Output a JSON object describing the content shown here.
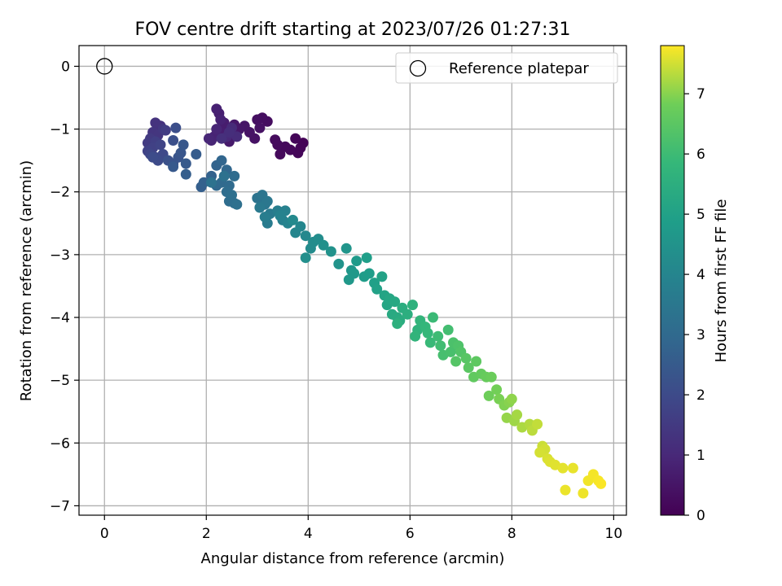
{
  "chart_data": {
    "type": "scatter",
    "title": "FOV centre drift starting at 2023/07/26 01:27:31",
    "xlabel": "Angular distance from reference (arcmin)",
    "ylabel": "Rotation from reference (arcmin)",
    "xlim": [
      -0.5,
      10.25
    ],
    "ylim": [
      -7.15,
      0.33
    ],
    "xticks": [
      0,
      2,
      4,
      6,
      8,
      10
    ],
    "xtick_labels": [
      "0",
      "2",
      "4",
      "6",
      "8",
      "10"
    ],
    "yticks": [
      0,
      -1,
      -2,
      -3,
      -4,
      -5,
      -6,
      -7
    ],
    "ytick_labels": [
      "0",
      "−1",
      "−2",
      "−3",
      "−4",
      "−5",
      "−6",
      "−7"
    ],
    "grid": true,
    "legend": {
      "placement": "top-right",
      "entries": [
        "Reference platepar"
      ]
    },
    "colorbar": {
      "label": "Hours from first FF file",
      "range": [
        0,
        7.8
      ],
      "ticks": [
        0,
        1,
        2,
        3,
        4,
        5,
        6,
        7
      ],
      "tick_labels": [
        "0",
        "1",
        "2",
        "3",
        "4",
        "5",
        "6",
        "7"
      ],
      "colormap": "viridis"
    },
    "reference_point": {
      "x": 0,
      "y": 0
    },
    "points": [
      [
        3.9,
        -1.22,
        0.05
      ],
      [
        3.85,
        -1.3,
        0.08
      ],
      [
        3.75,
        -1.15,
        0.1
      ],
      [
        3.8,
        -1.38,
        0.12
      ],
      [
        3.65,
        -1.33,
        0.15
      ],
      [
        3.55,
        -1.28,
        0.18
      ],
      [
        3.45,
        -1.4,
        0.2
      ],
      [
        3.4,
        -1.25,
        0.22
      ],
      [
        3.35,
        -1.17,
        0.25
      ],
      [
        3.2,
        -0.88,
        0.3
      ],
      [
        3.1,
        -0.82,
        0.33
      ],
      [
        3.0,
        -0.85,
        0.36
      ],
      [
        3.05,
        -0.98,
        0.4
      ],
      [
        2.95,
        -1.15,
        0.43
      ],
      [
        2.85,
        -1.05,
        0.46
      ],
      [
        2.75,
        -0.95,
        0.5
      ],
      [
        2.65,
        -1.0,
        0.53
      ],
      [
        2.55,
        -0.93,
        0.56
      ],
      [
        2.5,
        -1.08,
        0.6
      ],
      [
        2.45,
        -1.2,
        0.63
      ],
      [
        2.4,
        -0.98,
        0.66
      ],
      [
        2.35,
        -0.9,
        0.7
      ],
      [
        2.3,
        -1.05,
        0.73
      ],
      [
        2.25,
        -0.75,
        0.76
      ],
      [
        2.2,
        -0.68,
        0.8
      ],
      [
        2.28,
        -0.85,
        0.83
      ],
      [
        2.15,
        -1.12,
        0.86
      ],
      [
        2.1,
        -1.18,
        0.9
      ],
      [
        2.2,
        -1.0,
        0.93
      ],
      [
        2.05,
        -1.15,
        0.96
      ],
      [
        2.4,
        -1.12,
        1.0
      ],
      [
        2.5,
        -0.98,
        1.05
      ],
      [
        2.6,
        -1.12,
        1.1
      ],
      [
        2.45,
        -1.05,
        1.15
      ],
      [
        2.3,
        -1.15,
        1.2
      ],
      [
        1.1,
        -0.95,
        1.25
      ],
      [
        1.0,
        -0.9,
        1.3
      ],
      [
        0.95,
        -1.05,
        1.35
      ],
      [
        1.05,
        -1.1,
        1.4
      ],
      [
        1.15,
        -1.0,
        1.45
      ],
      [
        0.9,
        -1.15,
        1.5
      ],
      [
        0.85,
        -1.22,
        1.55
      ],
      [
        1.2,
        -1.02,
        1.6
      ],
      [
        1.0,
        -1.2,
        1.65
      ],
      [
        0.95,
        -1.3,
        1.7
      ],
      [
        0.85,
        -1.35,
        1.75
      ],
      [
        1.1,
        -1.25,
        1.8
      ],
      [
        0.9,
        -1.4,
        1.85
      ],
      [
        1.0,
        -1.45,
        1.9
      ],
      [
        1.15,
        -1.4,
        1.95
      ],
      [
        1.05,
        -1.5,
        2.0
      ],
      [
        0.95,
        -1.45,
        2.05
      ],
      [
        1.4,
        -0.98,
        2.1
      ],
      [
        1.35,
        -1.18,
        2.15
      ],
      [
        1.25,
        -1.5,
        2.2
      ],
      [
        1.35,
        -1.55,
        2.25
      ],
      [
        1.45,
        -1.45,
        2.3
      ],
      [
        1.5,
        -1.38,
        2.35
      ],
      [
        1.55,
        -1.25,
        2.4
      ],
      [
        1.35,
        -1.6,
        2.45
      ],
      [
        1.6,
        -1.55,
        2.5
      ],
      [
        1.8,
        -1.4,
        2.55
      ],
      [
        1.6,
        -1.72,
        2.6
      ],
      [
        1.9,
        -1.92,
        2.65
      ],
      [
        1.95,
        -1.85,
        2.7
      ],
      [
        2.1,
        -1.75,
        2.75
      ],
      [
        2.2,
        -1.58,
        2.8
      ],
      [
        2.3,
        -1.5,
        2.85
      ],
      [
        2.4,
        -1.65,
        2.9
      ],
      [
        2.2,
        -1.9,
        2.95
      ],
      [
        2.3,
        -1.85,
        3.0
      ],
      [
        2.45,
        -1.9,
        3.03
      ],
      [
        2.55,
        -1.75,
        3.06
      ],
      [
        2.4,
        -2.0,
        3.1
      ],
      [
        2.45,
        -2.15,
        3.13
      ],
      [
        2.55,
        -2.18,
        3.16
      ],
      [
        2.5,
        -2.05,
        3.2
      ],
      [
        2.6,
        -2.2,
        3.23
      ],
      [
        2.35,
        -1.75,
        3.26
      ],
      [
        2.1,
        -1.85,
        3.3
      ],
      [
        3.0,
        -2.1,
        3.35
      ],
      [
        3.1,
        -2.05,
        3.4
      ],
      [
        3.15,
        -2.2,
        3.45
      ],
      [
        3.2,
        -2.15,
        3.5
      ],
      [
        3.05,
        -2.25,
        3.55
      ],
      [
        3.25,
        -2.35,
        3.6
      ],
      [
        3.2,
        -2.5,
        3.65
      ],
      [
        3.15,
        -2.4,
        3.7
      ],
      [
        3.4,
        -2.3,
        3.75
      ],
      [
        3.5,
        -2.45,
        3.8
      ],
      [
        3.55,
        -2.3,
        3.85
      ],
      [
        3.45,
        -2.38,
        3.9
      ],
      [
        3.6,
        -2.5,
        3.95
      ],
      [
        3.75,
        -2.65,
        4.0
      ],
      [
        3.85,
        -2.55,
        4.05
      ],
      [
        3.95,
        -2.7,
        4.1
      ],
      [
        3.7,
        -2.45,
        4.15
      ],
      [
        4.05,
        -2.9,
        4.2
      ],
      [
        4.1,
        -2.8,
        4.25
      ],
      [
        4.2,
        -2.75,
        4.3
      ],
      [
        3.95,
        -3.05,
        4.35
      ],
      [
        4.3,
        -2.85,
        4.4
      ],
      [
        4.45,
        -2.95,
        4.45
      ],
      [
        4.6,
        -3.15,
        4.5
      ],
      [
        4.75,
        -2.9,
        4.55
      ],
      [
        4.85,
        -3.25,
        4.6
      ],
      [
        4.8,
        -3.4,
        4.65
      ],
      [
        4.9,
        -3.3,
        4.7
      ],
      [
        4.95,
        -3.1,
        4.75
      ],
      [
        5.1,
        -3.35,
        4.8
      ],
      [
        5.2,
        -3.3,
        4.85
      ],
      [
        5.15,
        -3.05,
        4.9
      ],
      [
        5.3,
        -3.45,
        4.95
      ],
      [
        5.35,
        -3.55,
        5.0
      ],
      [
        5.45,
        -3.35,
        5.05
      ],
      [
        5.5,
        -3.65,
        5.1
      ],
      [
        5.55,
        -3.8,
        5.15
      ],
      [
        5.6,
        -3.7,
        5.2
      ],
      [
        5.7,
        -3.75,
        5.25
      ],
      [
        5.65,
        -3.95,
        5.3
      ],
      [
        5.75,
        -4.0,
        5.35
      ],
      [
        5.8,
        -4.05,
        5.4
      ],
      [
        5.85,
        -3.85,
        5.45
      ],
      [
        5.95,
        -3.95,
        5.5
      ],
      [
        5.75,
        -4.1,
        5.55
      ],
      [
        6.05,
        -3.8,
        5.6
      ],
      [
        6.15,
        -4.2,
        5.65
      ],
      [
        6.1,
        -4.3,
        5.7
      ],
      [
        6.2,
        -4.05,
        5.75
      ],
      [
        6.3,
        -4.15,
        5.8
      ],
      [
        6.35,
        -4.25,
        5.85
      ],
      [
        6.4,
        -4.4,
        5.9
      ],
      [
        6.45,
        -4.0,
        5.95
      ],
      [
        6.55,
        -4.3,
        6.0
      ],
      [
        6.6,
        -4.45,
        6.05
      ],
      [
        6.75,
        -4.2,
        6.1
      ],
      [
        6.65,
        -4.6,
        6.15
      ],
      [
        6.8,
        -4.55,
        6.2
      ],
      [
        6.85,
        -4.4,
        6.25
      ],
      [
        6.95,
        -4.45,
        6.3
      ],
      [
        7.0,
        -4.55,
        6.35
      ],
      [
        6.9,
        -4.7,
        6.4
      ],
      [
        7.1,
        -4.65,
        6.45
      ],
      [
        7.15,
        -4.8,
        6.5
      ],
      [
        7.3,
        -4.7,
        6.55
      ],
      [
        7.25,
        -4.95,
        6.6
      ],
      [
        7.4,
        -4.9,
        6.65
      ],
      [
        7.5,
        -4.95,
        6.7
      ],
      [
        7.6,
        -4.95,
        6.75
      ],
      [
        7.55,
        -5.25,
        6.8
      ],
      [
        7.7,
        -5.15,
        6.85
      ],
      [
        7.75,
        -5.3,
        6.9
      ],
      [
        7.85,
        -5.4,
        6.95
      ],
      [
        7.95,
        -5.35,
        7.0
      ],
      [
        8.0,
        -5.3,
        7.05
      ],
      [
        7.9,
        -5.6,
        7.1
      ],
      [
        8.05,
        -5.65,
        7.15
      ],
      [
        8.1,
        -5.55,
        7.2
      ],
      [
        8.2,
        -5.75,
        7.25
      ],
      [
        8.35,
        -5.7,
        7.3
      ],
      [
        8.4,
        -5.8,
        7.35
      ],
      [
        8.5,
        -5.7,
        7.4
      ],
      [
        8.6,
        -6.05,
        7.45
      ],
      [
        8.65,
        -6.1,
        7.5
      ],
      [
        8.55,
        -6.15,
        7.52
      ],
      [
        8.7,
        -6.25,
        7.55
      ],
      [
        8.75,
        -6.3,
        7.58
      ],
      [
        8.85,
        -6.35,
        7.6
      ],
      [
        9.0,
        -6.4,
        7.63
      ],
      [
        9.2,
        -6.4,
        7.66
      ],
      [
        9.05,
        -6.75,
        7.68
      ],
      [
        9.4,
        -6.8,
        7.7
      ],
      [
        9.5,
        -6.6,
        7.72
      ],
      [
        9.6,
        -6.5,
        7.74
      ],
      [
        9.7,
        -6.6,
        7.76
      ],
      [
        9.75,
        -6.65,
        7.78
      ]
    ]
  }
}
